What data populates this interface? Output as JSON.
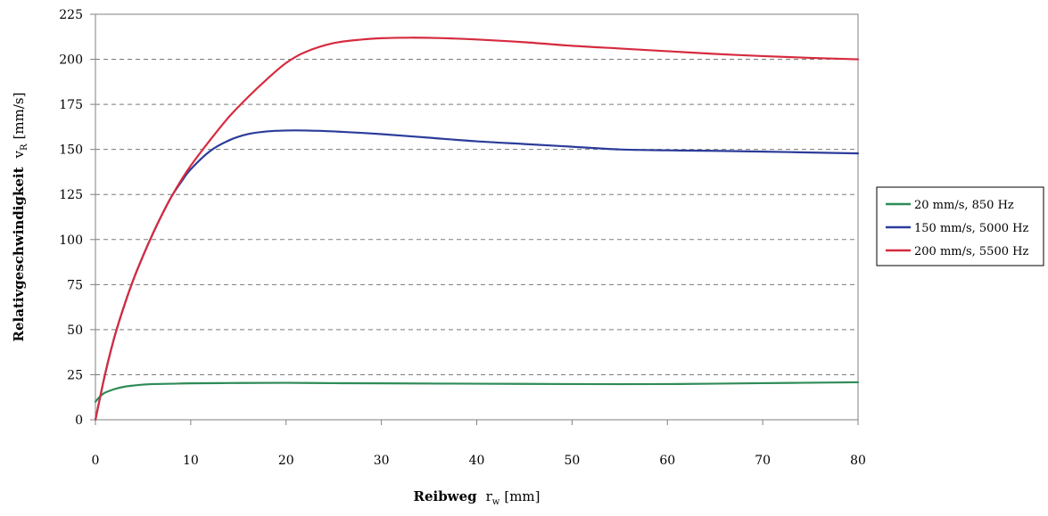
{
  "chart_data": {
    "type": "line",
    "xlabel": {
      "main": "Reibweg",
      "symbol": "r",
      "sub": "w",
      "unit": "[mm]"
    },
    "ylabel": {
      "main": "Relativgeschwindigkeit",
      "symbol": "v",
      "sub": "R",
      "unit": "[mm/s]"
    },
    "xlim": [
      0,
      80
    ],
    "ylim": [
      0,
      225
    ],
    "xticks": [
      "0",
      "10",
      "20",
      "30",
      "40",
      "50",
      "60",
      "70",
      "80"
    ],
    "yticks": [
      "0",
      "25",
      "50",
      "75",
      "100",
      "125",
      "150",
      "175",
      "200",
      "225"
    ],
    "grid": "horizontal dashed",
    "legend_position": "right",
    "series": [
      {
        "name": "20 mm/s, 850 Hz",
        "color": "#2e8b57",
        "x": [
          0,
          0.5,
          1,
          2,
          3,
          4,
          5,
          6,
          8,
          10,
          15,
          20,
          25,
          30,
          40,
          50,
          60,
          70,
          80
        ],
        "y": [
          10,
          13,
          15,
          17,
          18.3,
          19,
          19.5,
          19.8,
          20,
          20.2,
          20.4,
          20.5,
          20.3,
          20.2,
          20,
          19.8,
          19.8,
          20.3,
          20.8
        ]
      },
      {
        "name": "150 mm/s, 5000 Hz",
        "color": "#2b3c9a",
        "x": [
          0,
          1,
          2,
          3,
          4,
          5,
          6,
          7,
          8,
          9,
          10,
          12,
          14,
          16,
          18,
          20,
          22,
          25,
          30,
          35,
          40,
          45,
          50,
          55,
          60,
          65,
          70,
          75,
          80
        ],
        "y": [
          0,
          25,
          46,
          63,
          78,
          91,
          103,
          114,
          124,
          132,
          139,
          149,
          155,
          158.5,
          160,
          160.5,
          160.5,
          160,
          158.5,
          156.5,
          154.5,
          153,
          151.5,
          150,
          149.5,
          149.2,
          148.8,
          148.3,
          147.8
        ]
      },
      {
        "name": "200 mm/s, 5500 Hz",
        "color": "#d62b3f",
        "x": [
          0,
          1,
          2,
          3,
          4,
          5,
          6,
          7,
          8,
          9,
          10,
          12,
          14,
          16,
          18,
          20,
          22,
          25,
          28,
          30,
          33,
          36,
          40,
          45,
          50,
          55,
          60,
          65,
          70,
          75,
          80
        ],
        "y": [
          0,
          25,
          46,
          63,
          78,
          91,
          103,
          114,
          124,
          133,
          141,
          155,
          168,
          179,
          189,
          198,
          204,
          209,
          211,
          211.7,
          212,
          211.8,
          211,
          209.5,
          207.5,
          206,
          204.5,
          203,
          201.8,
          200.8,
          200
        ]
      }
    ]
  }
}
